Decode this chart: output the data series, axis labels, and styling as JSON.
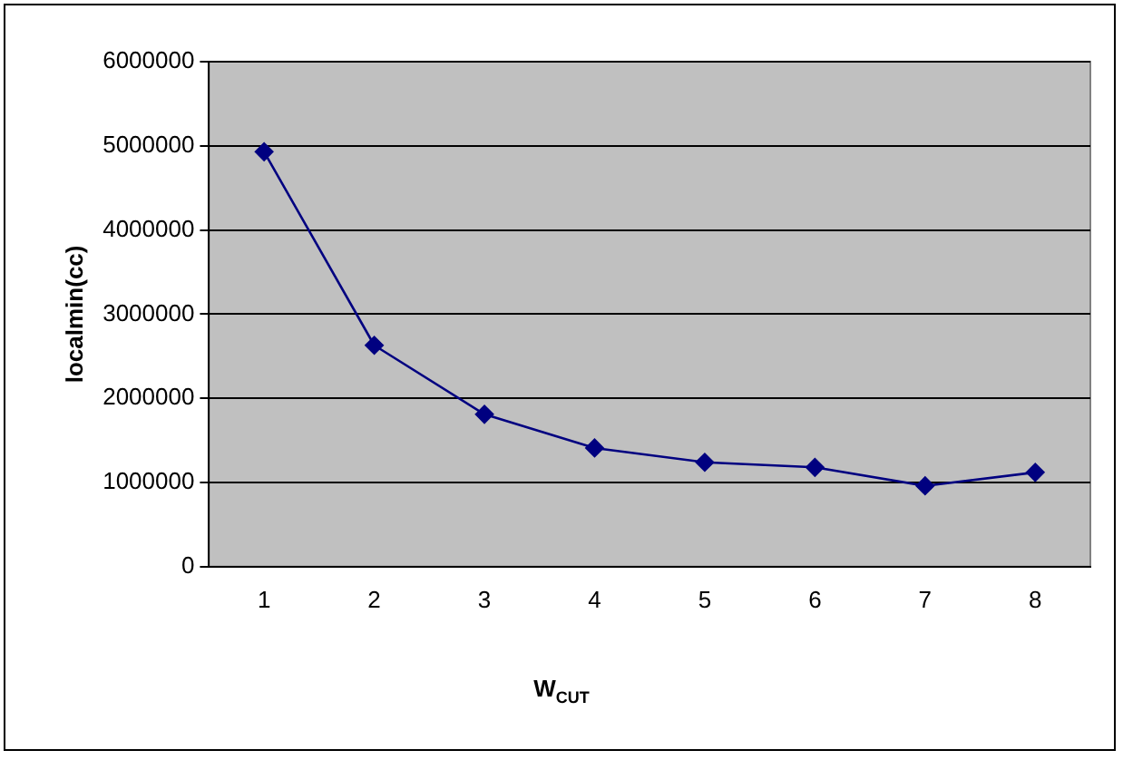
{
  "chart_data": {
    "type": "line",
    "xlabel": "W$_{CUT}$",
    "ylabel": "localmin(cc)",
    "categories": [
      "1",
      "2",
      "3",
      "4",
      "5",
      "6",
      "7",
      "8"
    ],
    "series": [
      {
        "color": "#000080",
        "values": [
          4930000,
          2630000,
          1810000,
          1410000,
          1240000,
          1180000,
          960000,
          1120000
        ]
      }
    ],
    "ylim": [
      0,
      6000000
    ],
    "yticks": [
      0,
      1000000,
      2000000,
      3000000,
      4000000,
      5000000,
      6000000
    ],
    "grid": "y",
    "legend": false,
    "marker": "diamond",
    "line_style": "solid"
  }
}
